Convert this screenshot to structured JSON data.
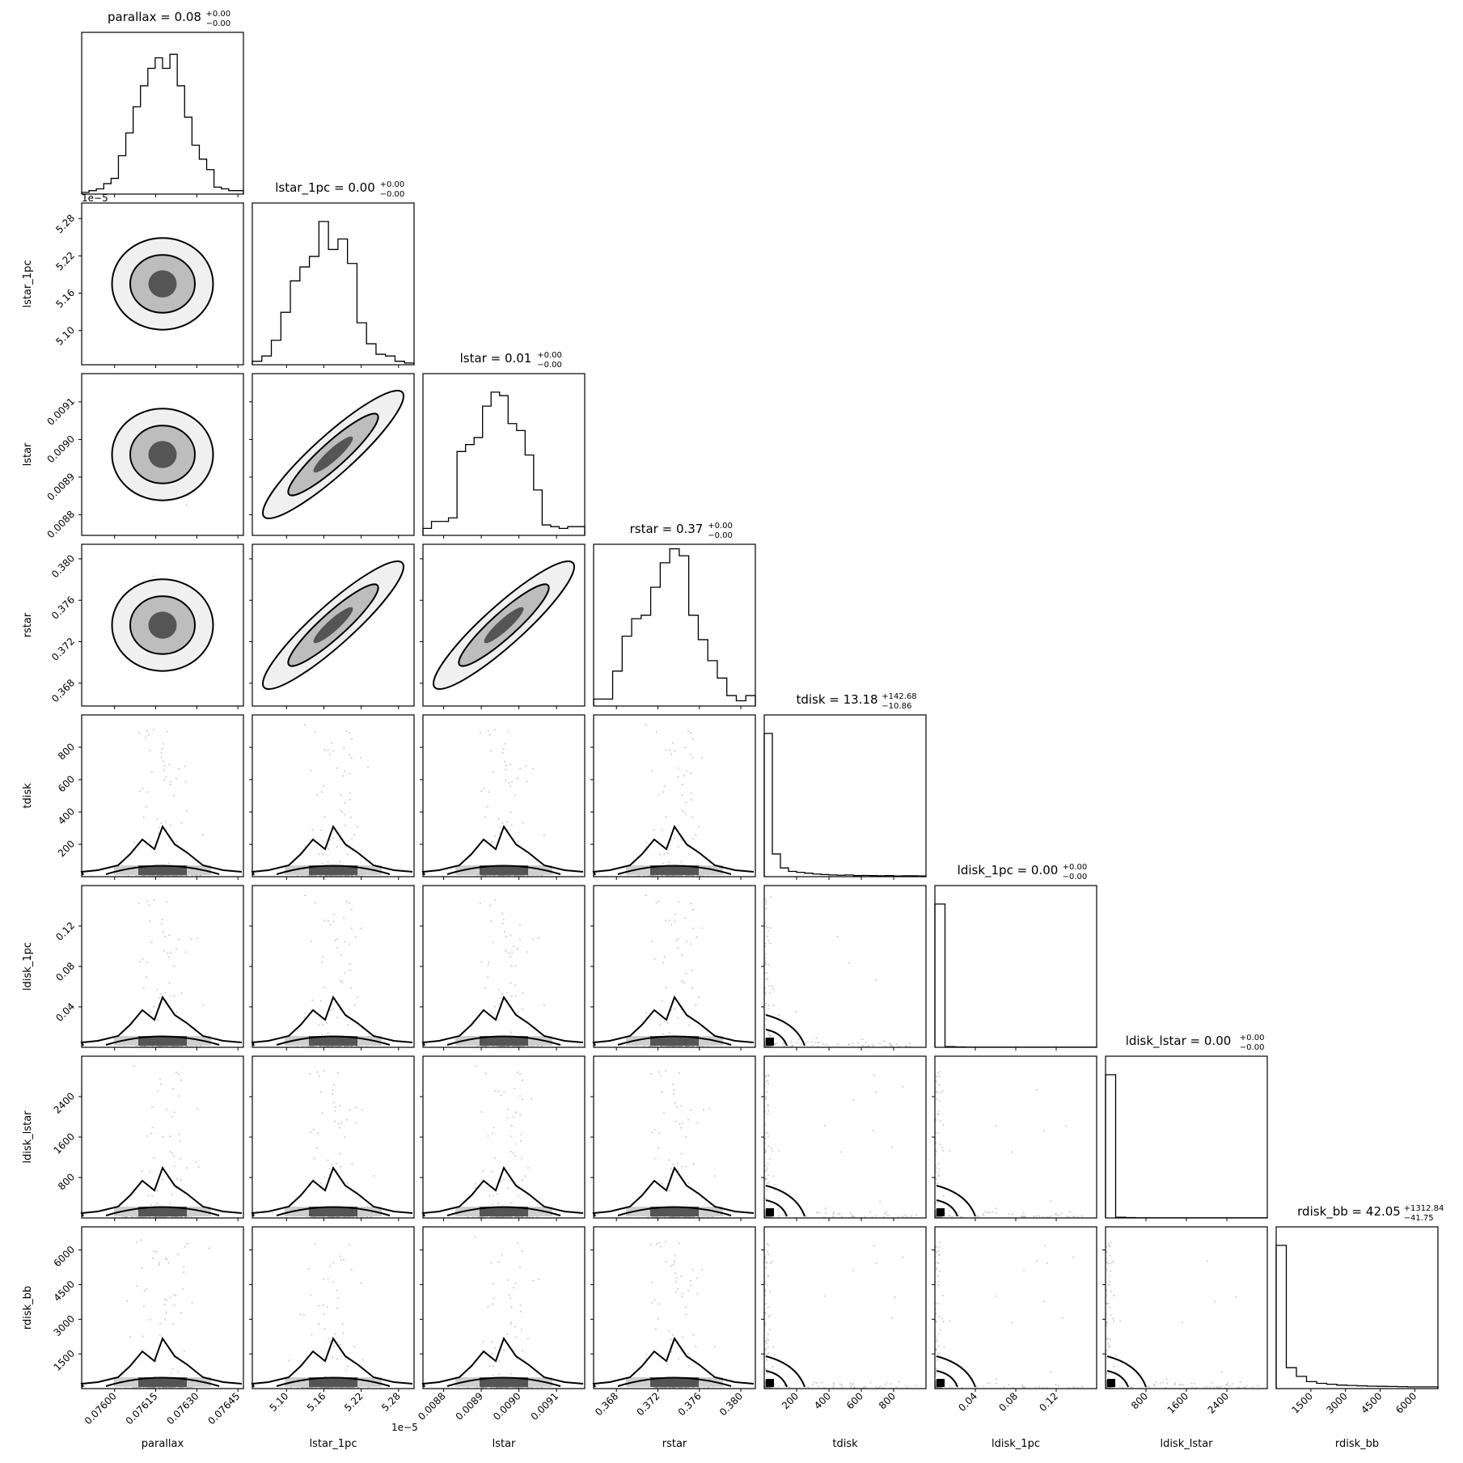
{
  "chart_data": {
    "type": "corner",
    "parameters": [
      {
        "name": "parallax",
        "title_value": "0.08",
        "err_plus": "+0.00",
        "err_minus": "−0.00",
        "lim": [
          0.07588,
          0.07647
        ],
        "ticks": [
          0.076,
          0.07615,
          0.0763,
          0.07645
        ],
        "tick_labels": [
          "0.07600",
          "0.07615",
          "0.07630",
          "0.07645"
        ],
        "offset": ""
      },
      {
        "name": "lstar_1pc",
        "title_value": "0.00",
        "err_plus": "+0.00",
        "err_minus": "−0.00",
        "lim": [
          5.045,
          5.305
        ],
        "ticks": [
          5.1,
          5.16,
          5.22,
          5.28
        ],
        "tick_labels": [
          "5.10",
          "5.16",
          "5.22",
          "5.28"
        ],
        "offset": "1e−5"
      },
      {
        "name": "lstar",
        "title_value": "0.01",
        "err_plus": "+0.00",
        "err_minus": "−0.00",
        "lim": [
          0.008745,
          0.009175
        ],
        "ticks": [
          0.0088,
          0.0089,
          0.009,
          0.0091
        ],
        "tick_labels": [
          "0.0088",
          "0.0089",
          "0.0090",
          "0.0091"
        ],
        "offset": ""
      },
      {
        "name": "rstar",
        "title_value": "0.37",
        "err_plus": "+0.00",
        "err_minus": "−0.00",
        "lim": [
          0.3658,
          0.3814
        ],
        "ticks": [
          0.368,
          0.372,
          0.376,
          0.38
        ],
        "tick_labels": [
          "0.368",
          "0.372",
          "0.376",
          "0.380"
        ],
        "offset": ""
      },
      {
        "name": "tdisk",
        "title_value": "13.18",
        "err_plus": "+142.68",
        "err_minus": "−10.86",
        "lim": [
          0,
          1000
        ],
        "ticks": [
          200,
          400,
          600,
          800
        ],
        "tick_labels": [
          "200",
          "400",
          "600",
          "800"
        ],
        "offset": ""
      },
      {
        "name": "ldisk_1pc",
        "title_value": "0.00",
        "err_plus": "+0.00",
        "err_minus": "−0.00",
        "lim": [
          0,
          0.16
        ],
        "ticks": [
          0.04,
          0.08,
          0.12
        ],
        "tick_labels": [
          "0.04",
          "0.08",
          "0.12"
        ],
        "offset": ""
      },
      {
        "name": "ldisk_lstar",
        "title_value": "0.00",
        "err_plus": "+0.00",
        "err_minus": "−0.00",
        "lim": [
          0,
          3200
        ],
        "ticks": [
          800,
          1600,
          2400
        ],
        "tick_labels": [
          "800",
          "1600",
          "2400"
        ],
        "offset": ""
      },
      {
        "name": "rdisk_bb",
        "title_value": "42.05",
        "err_plus": "+1312.84",
        "err_minus": "−41.75",
        "lim": [
          0,
          7000
        ],
        "ticks": [
          1500,
          3000,
          4500,
          6000
        ],
        "tick_labels": [
          "1500",
          "3000",
          "4500",
          "6000"
        ],
        "offset": ""
      }
    ],
    "histograms": [
      [
        0.01,
        0.02,
        0.03,
        0.06,
        0.09,
        0.22,
        0.35,
        0.5,
        0.62,
        0.72,
        0.78,
        0.72,
        0.8,
        0.62,
        0.44,
        0.28,
        0.2,
        0.14,
        0.04,
        0.03,
        0.02,
        0.02
      ],
      [
        0.02,
        0.05,
        0.14,
        0.3,
        0.48,
        0.56,
        0.62,
        0.82,
        0.66,
        0.72,
        0.58,
        0.24,
        0.12,
        0.06,
        0.05,
        0.02,
        0.01
      ],
      [
        0.04,
        0.08,
        0.08,
        0.1,
        0.48,
        0.52,
        0.56,
        0.74,
        0.82,
        0.8,
        0.64,
        0.6,
        0.46,
        0.26,
        0.06,
        0.05,
        0.04,
        0.05,
        0.05
      ],
      [
        0.04,
        0.04,
        0.2,
        0.4,
        0.5,
        0.52,
        0.68,
        0.82,
        0.9,
        0.86,
        0.52,
        0.38,
        0.26,
        0.16,
        0.06,
        0.03,
        0.06
      ],
      [
        0.82,
        0.13,
        0.05,
        0.03,
        0.025,
        0.02,
        0.015,
        0.012,
        0.01,
        0.008,
        0.01,
        0.006,
        0.007,
        0.006,
        0.005,
        0.006,
        0.004,
        0.005,
        0.005,
        0.004
      ],
      [
        0.82,
        0.004,
        0.002,
        0.001,
        0.001,
        0.001,
        0.001,
        0.001,
        0.001,
        0.001,
        0.001,
        0.001,
        0.001,
        0.001,
        0.001,
        0.001
      ],
      [
        0.82,
        0.004,
        0.002,
        0.001,
        0.001,
        0.001,
        0.001,
        0.001,
        0.001,
        0.001,
        0.001,
        0.001,
        0.001,
        0.001,
        0.001,
        0.001
      ],
      [
        0.82,
        0.12,
        0.07,
        0.04,
        0.03,
        0.025,
        0.02,
        0.018,
        0.016,
        0.014,
        0.013,
        0.012,
        0.011,
        0.01,
        0.01,
        0.01
      ]
    ]
  }
}
